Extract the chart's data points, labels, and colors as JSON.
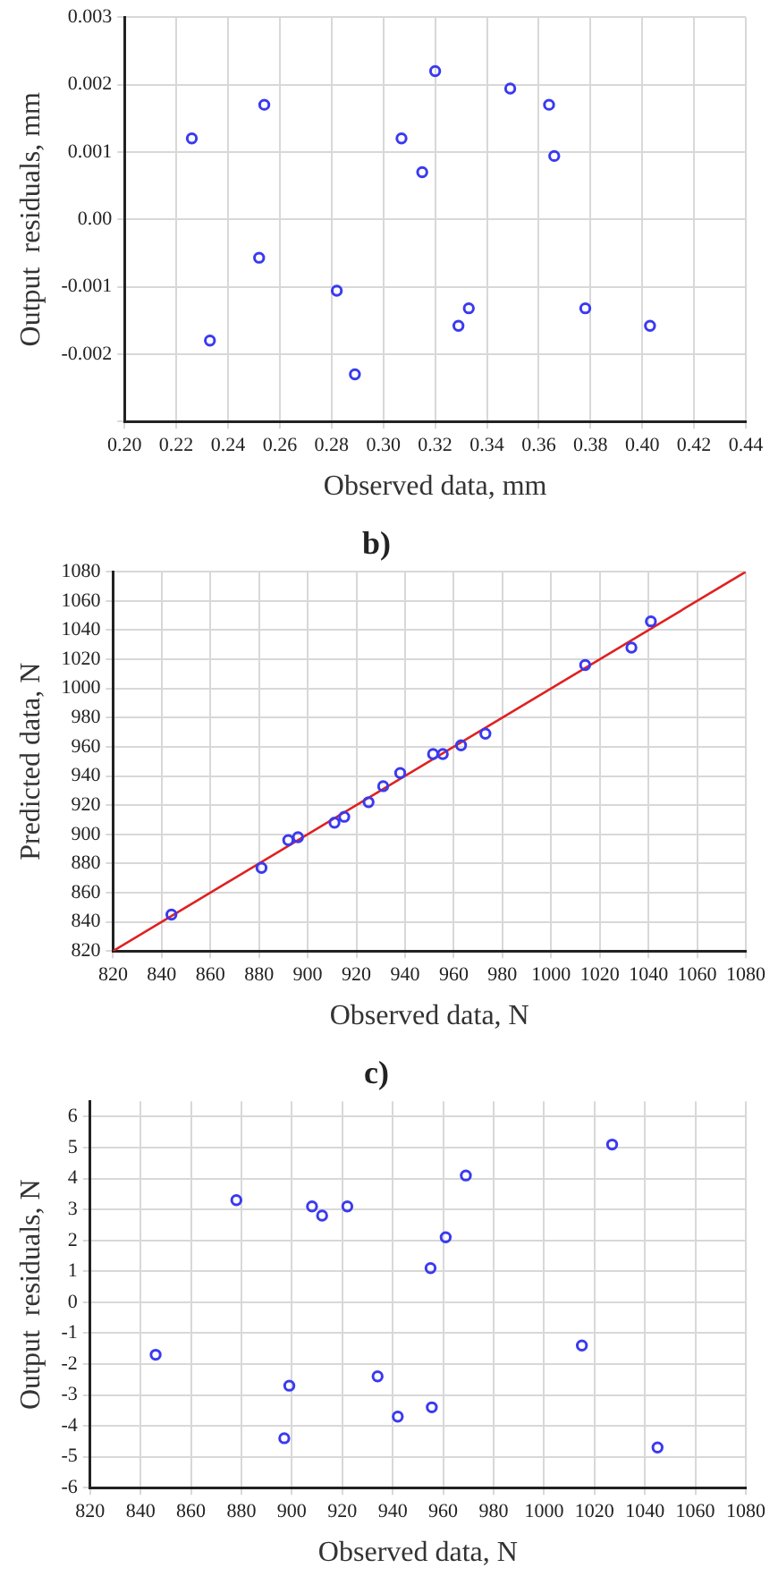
{
  "chart_data": [
    {
      "type": "scatter",
      "xlabel": "Observed data, mm",
      "ylabel": "Output  residuals, mm",
      "marker": "circle",
      "grid": true,
      "legend": false,
      "xlim": [
        0.2,
        0.44
      ],
      "xticks": [
        {
          "value": 0.2,
          "label": "0.20"
        },
        {
          "value": 0.22,
          "label": "0.22"
        },
        {
          "value": 0.24,
          "label": "0.24"
        },
        {
          "value": 0.26,
          "label": "0.26"
        },
        {
          "value": 0.28,
          "label": "0.28"
        },
        {
          "value": 0.3,
          "label": "0.30"
        },
        {
          "value": 0.32,
          "label": "0.32"
        },
        {
          "value": 0.34,
          "label": "0.34"
        },
        {
          "value": 0.36,
          "label": "0.36"
        },
        {
          "value": 0.38,
          "label": "0.38"
        },
        {
          "value": 0.4,
          "label": "0.40"
        },
        {
          "value": 0.42,
          "label": "0.42"
        },
        {
          "value": 0.44,
          "label": "0.44"
        }
      ],
      "ylim": [
        -0.003,
        0.003
      ],
      "yticks": [
        {
          "value": -0.003,
          "label": null
        },
        -0.002,
        -0.001,
        {
          "value": 0,
          "label": "0.00"
        },
        0.001,
        0.002,
        0.003
      ],
      "series": [
        {
          "color": "#3a3af0",
          "x": [
            0.226,
            0.233,
            0.254,
            0.252,
            0.282,
            0.289,
            0.307,
            0.315,
            0.32,
            0.329,
            0.333,
            0.349,
            0.364,
            0.366,
            0.378,
            0.403
          ],
          "values": [
            0.0012,
            -0.0018,
            0.0017,
            -0.00057,
            -0.00106,
            -0.0023,
            0.0012,
            0.0007,
            0.0022,
            -0.00158,
            -0.00132,
            0.00194,
            0.0017,
            0.00094,
            -0.00132,
            -0.00158
          ]
        }
      ]
    },
    {
      "type": "scatter",
      "title": "b)",
      "xlabel": "Observed data, N",
      "ylabel": "Predicted data, N",
      "marker": "circle",
      "grid": true,
      "legend": false,
      "xlim": [
        820,
        1080
      ],
      "xticks": [
        820,
        840,
        860,
        880,
        900,
        920,
        940,
        960,
        980,
        1000,
        1020,
        1040,
        1060,
        1080
      ],
      "ylim": [
        820,
        1080
      ],
      "yticks": [
        820,
        840,
        860,
        880,
        900,
        920,
        940,
        960,
        980,
        1000,
        1020,
        1040,
        1060,
        1080
      ],
      "series": [
        {
          "color": "#3a3af0",
          "x": [
            844,
            881,
            892,
            896,
            911,
            915,
            925,
            931,
            938,
            951.5,
            955.5,
            963,
            973,
            1014,
            1033,
            1041
          ],
          "values": [
            845,
            877,
            896,
            898,
            908,
            912,
            922,
            933,
            942,
            955,
            955,
            961,
            969,
            1016,
            1028,
            1046
          ]
        },
        {
          "type": "line",
          "marker": "none",
          "color": "#e02020",
          "x": [
            820,
            1080
          ],
          "values": [
            820,
            1080
          ]
        }
      ]
    },
    {
      "type": "scatter",
      "title": "c)",
      "xlabel": "Observed data, N",
      "ylabel": "Output  residuals, N",
      "marker": "circle",
      "grid": true,
      "legend": false,
      "xlim": [
        820,
        1080
      ],
      "xticks": [
        820,
        840,
        860,
        880,
        900,
        920,
        940,
        960,
        980,
        1000,
        1020,
        1040,
        1060,
        1080
      ],
      "ylim": [
        -6,
        6.5
      ],
      "yticks": [
        -6,
        -5,
        -4,
        -3,
        -2,
        -1,
        0,
        1,
        2,
        3,
        4,
        5,
        6
      ],
      "series": [
        {
          "color": "#3a3af0",
          "x": [
            846,
            878,
            897,
            899,
            908,
            912,
            922,
            934,
            942,
            955,
            955.5,
            961,
            969,
            1015,
            1027,
            1045
          ],
          "values": [
            -1.7,
            3.3,
            -4.4,
            -2.7,
            3.1,
            2.8,
            3.1,
            -2.4,
            -3.7,
            1.1,
            -3.4,
            2.1,
            4.1,
            -1.4,
            5.1,
            -4.7
          ]
        }
      ]
    }
  ]
}
